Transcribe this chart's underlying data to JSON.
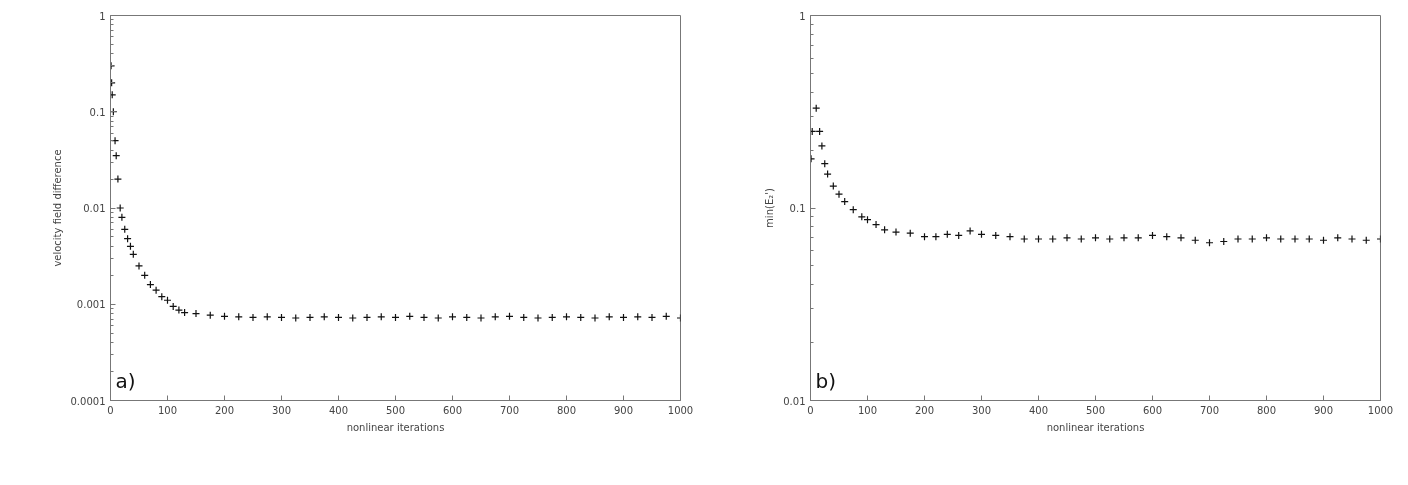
{
  "chart_data": [
    {
      "type": "scatter",
      "xlabel": "nonlinear iterations",
      "ylabel": "velocity field difference",
      "annotations": [
        "a)"
      ],
      "log": "y",
      "marker": "cross",
      "grid": false,
      "xlim": [
        0,
        1000
      ],
      "ylim": [
        0.0001,
        1
      ],
      "xticks": [
        0,
        100,
        200,
        300,
        400,
        500,
        600,
        700,
        800,
        900,
        1000
      ],
      "yticks": [
        0.0001,
        0.001,
        0.01,
        0.1,
        1
      ],
      "series": [
        {
          "color": "#111111",
          "x": [
            1,
            2,
            3,
            5,
            8,
            10,
            13,
            17,
            20,
            25,
            30,
            35,
            40,
            50,
            60,
            70,
            80,
            90,
            100,
            110,
            120,
            130,
            150,
            175,
            200,
            225,
            250,
            275,
            300,
            325,
            350,
            375,
            400,
            425,
            450,
            475,
            500,
            525,
            550,
            575,
            600,
            625,
            650,
            675,
            700,
            725,
            750,
            775,
            800,
            825,
            850,
            875,
            900,
            925,
            950,
            975,
            1000
          ],
          "values": [
            0.3,
            0.2,
            0.15,
            0.1,
            0.05,
            0.035,
            0.02,
            0.01,
            0.008,
            0.006,
            0.0048,
            0.004,
            0.0033,
            0.0025,
            0.002,
            0.0016,
            0.0014,
            0.0012,
            0.0011,
            0.00095,
            0.00087,
            0.00082,
            0.0008,
            0.00077,
            0.00075,
            0.00074,
            0.00073,
            0.00074,
            0.00073,
            0.00072,
            0.00073,
            0.00074,
            0.00073,
            0.00072,
            0.00073,
            0.00074,
            0.00073,
            0.00075,
            0.00073,
            0.00072,
            0.00074,
            0.00073,
            0.00072,
            0.00074,
            0.00075,
            0.00073,
            0.00072,
            0.00073,
            0.00074,
            0.00073,
            0.00072,
            0.00074,
            0.00073,
            0.00074,
            0.00073,
            0.00075,
            0.00072
          ]
        }
      ]
    },
    {
      "type": "scatter",
      "xlabel": "nonlinear iterations",
      "ylabel": "min(E₂')",
      "annotations": [
        "b)"
      ],
      "log": "y",
      "marker": "cross",
      "grid": false,
      "xlim": [
        0,
        1000
      ],
      "ylim": [
        0.01,
        1
      ],
      "xticks": [
        0,
        100,
        200,
        300,
        400,
        500,
        600,
        700,
        800,
        900,
        1000
      ],
      "yticks": [
        0.01,
        0.1,
        1
      ],
      "series": [
        {
          "color": "#111111",
          "x": [
            1,
            3,
            10,
            16,
            20,
            25,
            30,
            40,
            50,
            60,
            75,
            90,
            100,
            115,
            130,
            150,
            175,
            200,
            220,
            240,
            260,
            280,
            300,
            325,
            350,
            375,
            400,
            425,
            450,
            475,
            500,
            525,
            550,
            575,
            600,
            625,
            650,
            675,
            700,
            725,
            750,
            775,
            800,
            825,
            850,
            875,
            900,
            925,
            950,
            975,
            1000
          ],
          "values": [
            0.18,
            0.25,
            0.33,
            0.25,
            0.21,
            0.17,
            0.15,
            0.13,
            0.118,
            0.108,
            0.098,
            0.09,
            0.087,
            0.082,
            0.077,
            0.075,
            0.074,
            0.071,
            0.071,
            0.073,
            0.072,
            0.076,
            0.073,
            0.072,
            0.071,
            0.069,
            0.069,
            0.069,
            0.07,
            0.069,
            0.07,
            0.069,
            0.07,
            0.07,
            0.072,
            0.071,
            0.07,
            0.068,
            0.066,
            0.067,
            0.069,
            0.069,
            0.07,
            0.069,
            0.069,
            0.069,
            0.068,
            0.07,
            0.069,
            0.068,
            0.069
          ]
        }
      ]
    }
  ]
}
